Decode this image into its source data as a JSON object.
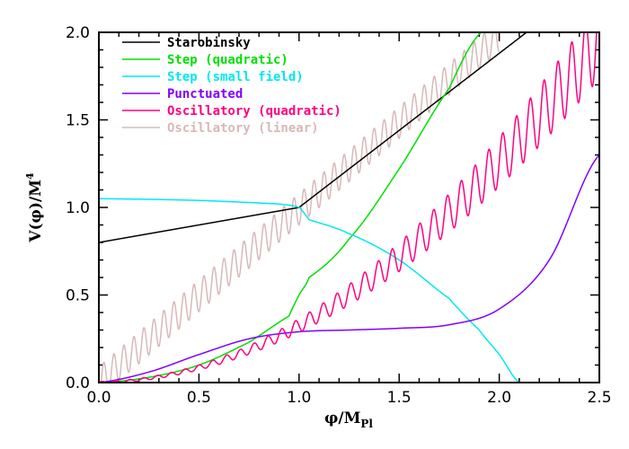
{
  "chart_data": {
    "type": "line",
    "title": "",
    "xlabel": "φ/M_Pl",
    "ylabel": "V(φ)/M⁴",
    "xlim": [
      0.0,
      2.5
    ],
    "ylim": [
      0.0,
      2.0
    ],
    "xticks": [
      "0.0",
      "0.5",
      "1.0",
      "1.5",
      "2.0",
      "2.5"
    ],
    "yticks": [
      "0.0",
      "0.5",
      "1.0",
      "1.5",
      "2.0"
    ],
    "grid": false,
    "legend_position": "upper-left",
    "series": [
      {
        "name": "Starobinsky",
        "color": "#000000",
        "x": [
          0.0,
          0.5,
          1.0,
          1.5,
          2.0,
          2.24
        ],
        "y": [
          0.8,
          0.9,
          1.0,
          1.44,
          1.88,
          2.0
        ]
      },
      {
        "name": "Step (quadratic)",
        "color": "#00e000",
        "x": [
          0.0,
          0.25,
          0.5,
          0.75,
          0.95,
          1.0,
          1.05,
          1.25,
          1.5,
          1.75,
          1.91
        ],
        "y": [
          0.0,
          0.03,
          0.1,
          0.23,
          0.38,
          0.5,
          0.6,
          0.82,
          1.22,
          1.68,
          2.0
        ]
      },
      {
        "name": "Step (small field)",
        "color": "#00e8f0",
        "x": [
          0.0,
          0.5,
          0.9,
          1.0,
          1.05,
          1.25,
          1.5,
          1.75,
          1.9,
          2.0,
          2.1
        ],
        "y": [
          1.05,
          1.04,
          1.02,
          1.0,
          0.93,
          0.85,
          0.7,
          0.48,
          0.3,
          0.16,
          0.0
        ]
      },
      {
        "name": "Punctuated",
        "color": "#8000ff",
        "x": [
          0.0,
          0.25,
          0.5,
          0.75,
          1.0,
          1.25,
          1.5,
          1.75,
          2.0,
          2.25,
          2.5
        ],
        "y": [
          0.0,
          0.06,
          0.16,
          0.25,
          0.29,
          0.3,
          0.31,
          0.33,
          0.42,
          0.7,
          1.3
        ]
      },
      {
        "name": "Oscillatory (quadratic)",
        "color": "#ff0080",
        "x": [
          0.0,
          0.5,
          1.0,
          1.5,
          2.0,
          2.5
        ],
        "y": [
          0.0,
          0.09,
          0.35,
          0.8,
          1.3,
          1.95
        ],
        "oscillation_amplitude": "grows with φ",
        "cycles": 36
      },
      {
        "name": "Oscillatory (linear)",
        "color": "#d8b8b8",
        "x": [
          0.0,
          0.5,
          1.0,
          1.5,
          2.0
        ],
        "y": [
          0.0,
          0.5,
          0.98,
          1.48,
          1.98
        ],
        "oscillation_amplitude": 0.09,
        "cycles": 40
      }
    ]
  },
  "legend": {
    "items": [
      {
        "label": "Starobinsky",
        "color": "#000000"
      },
      {
        "label": "Step (quadratic)",
        "color": "#00e000"
      },
      {
        "label": "Step (small field)",
        "color": "#00e8f0"
      },
      {
        "label": "Punctuated",
        "color": "#8000ff"
      },
      {
        "label": "Oscillatory (quadratic)",
        "color": "#ff0080"
      },
      {
        "label": "Oscillatory (linear)",
        "color": "#d8b8b8"
      }
    ]
  },
  "axes": {
    "xlabel_phi": "φ",
    "xlabel_rest": "/M",
    "xlabel_sub": "Pl",
    "ylabel_main": "V(φ)/M",
    "ylabel_sup": "4"
  }
}
